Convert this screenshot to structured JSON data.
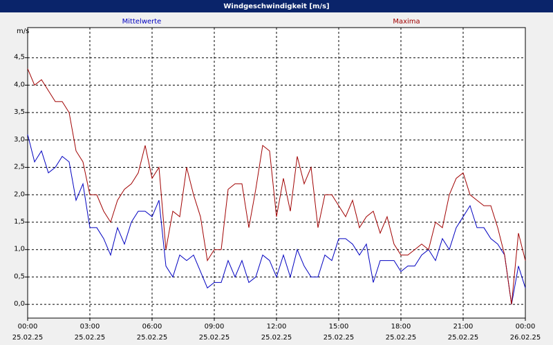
{
  "chart_data": {
    "type": "line",
    "title": "Windgeschwindigkeit [m/s]",
    "y_unit": "m/s",
    "x": [
      0,
      20,
      40,
      60,
      80,
      100,
      120,
      140,
      160,
      180,
      200,
      220,
      240,
      260,
      280,
      300,
      320,
      340,
      360,
      380,
      400,
      420,
      440,
      460,
      480,
      500,
      520,
      540,
      560,
      580,
      600,
      620,
      640,
      660,
      680,
      700,
      720,
      740,
      760,
      780,
      800,
      820,
      840,
      860,
      880,
      900,
      920,
      940,
      960,
      980,
      1000,
      1020,
      1040,
      1060,
      1080,
      1100,
      1120,
      1140,
      1160,
      1180,
      1200,
      1220,
      1240,
      1260,
      1280,
      1300,
      1320,
      1340,
      1360,
      1380,
      1400,
      1420,
      1440
    ],
    "series": [
      {
        "name": "Mittelwerte",
        "color": "#0000c0",
        "values": [
          3.1,
          2.6,
          2.8,
          2.4,
          2.5,
          2.7,
          2.6,
          1.9,
          2.2,
          1.4,
          1.4,
          1.2,
          0.9,
          1.4,
          1.1,
          1.5,
          1.7,
          1.7,
          1.6,
          1.9,
          0.7,
          0.5,
          0.9,
          0.8,
          0.9,
          0.6,
          0.3,
          0.4,
          0.4,
          0.8,
          0.5,
          0.8,
          0.4,
          0.5,
          0.9,
          0.8,
          0.5,
          0.9,
          0.5,
          1.0,
          0.7,
          0.5,
          0.5,
          0.9,
          0.8,
          1.2,
          1.2,
          1.1,
          0.9,
          1.1,
          0.4,
          0.8,
          0.8,
          0.8,
          0.6,
          0.7,
          0.7,
          0.9,
          1.0,
          0.8,
          1.2,
          1.0,
          1.4,
          1.6,
          1.8,
          1.4,
          1.4,
          1.2,
          1.1,
          0.9,
          0.0,
          0.7,
          0.3
        ]
      },
      {
        "name": "Maxima",
        "color": "#a00000",
        "values": [
          4.3,
          4.0,
          4.1,
          3.9,
          3.7,
          3.7,
          3.5,
          2.8,
          2.6,
          2.0,
          2.0,
          1.7,
          1.5,
          1.9,
          2.1,
          2.2,
          2.4,
          2.9,
          2.3,
          2.5,
          1.0,
          1.7,
          1.6,
          2.5,
          2.0,
          1.6,
          0.8,
          1.0,
          1.0,
          2.1,
          2.2,
          2.2,
          1.4,
          2.1,
          2.9,
          2.8,
          1.6,
          2.3,
          1.7,
          2.7,
          2.2,
          2.5,
          1.4,
          2.0,
          2.0,
          1.8,
          1.6,
          1.9,
          1.4,
          1.6,
          1.7,
          1.3,
          1.6,
          1.1,
          0.9,
          0.9,
          1.0,
          1.1,
          1.0,
          1.5,
          1.4,
          2.0,
          2.3,
          2.4,
          2.0,
          1.9,
          1.8,
          1.8,
          1.4,
          0.9,
          0.0,
          1.3,
          0.8
        ]
      }
    ],
    "xlim": [
      0,
      1440
    ],
    "xticks": [
      {
        "value": 0,
        "label": "00:00",
        "date": "25.02.25"
      },
      {
        "value": 180,
        "label": "03:00",
        "date": "25.02.25"
      },
      {
        "value": 360,
        "label": "06:00",
        "date": "25.02.25"
      },
      {
        "value": 540,
        "label": "09:00",
        "date": "25.02.25"
      },
      {
        "value": 720,
        "label": "12:00",
        "date": "25.02.25"
      },
      {
        "value": 900,
        "label": "15:00",
        "date": "25.02.25"
      },
      {
        "value": 1080,
        "label": "18:00",
        "date": "25.02.25"
      },
      {
        "value": 1260,
        "label": "21:00",
        "date": "25.02.25"
      },
      {
        "value": 1440,
        "label": "00:00",
        "date": "26.02.25"
      }
    ],
    "ylim": [
      -0.25,
      5.05
    ],
    "yticks": [
      {
        "value": 0,
        "label": "0,0"
      },
      {
        "value": 0.5,
        "label": "0,5"
      },
      {
        "value": 1,
        "label": "1,0"
      },
      {
        "value": 1.5,
        "label": "1,5"
      },
      {
        "value": 2,
        "label": "2,0"
      },
      {
        "value": 2.5,
        "label": "2,5"
      },
      {
        "value": 3,
        "label": "3,0"
      },
      {
        "value": 3.5,
        "label": "3,5"
      },
      {
        "value": 4,
        "label": "4,0"
      },
      {
        "value": 4.5,
        "label": "4,5"
      }
    ],
    "grid": true
  }
}
